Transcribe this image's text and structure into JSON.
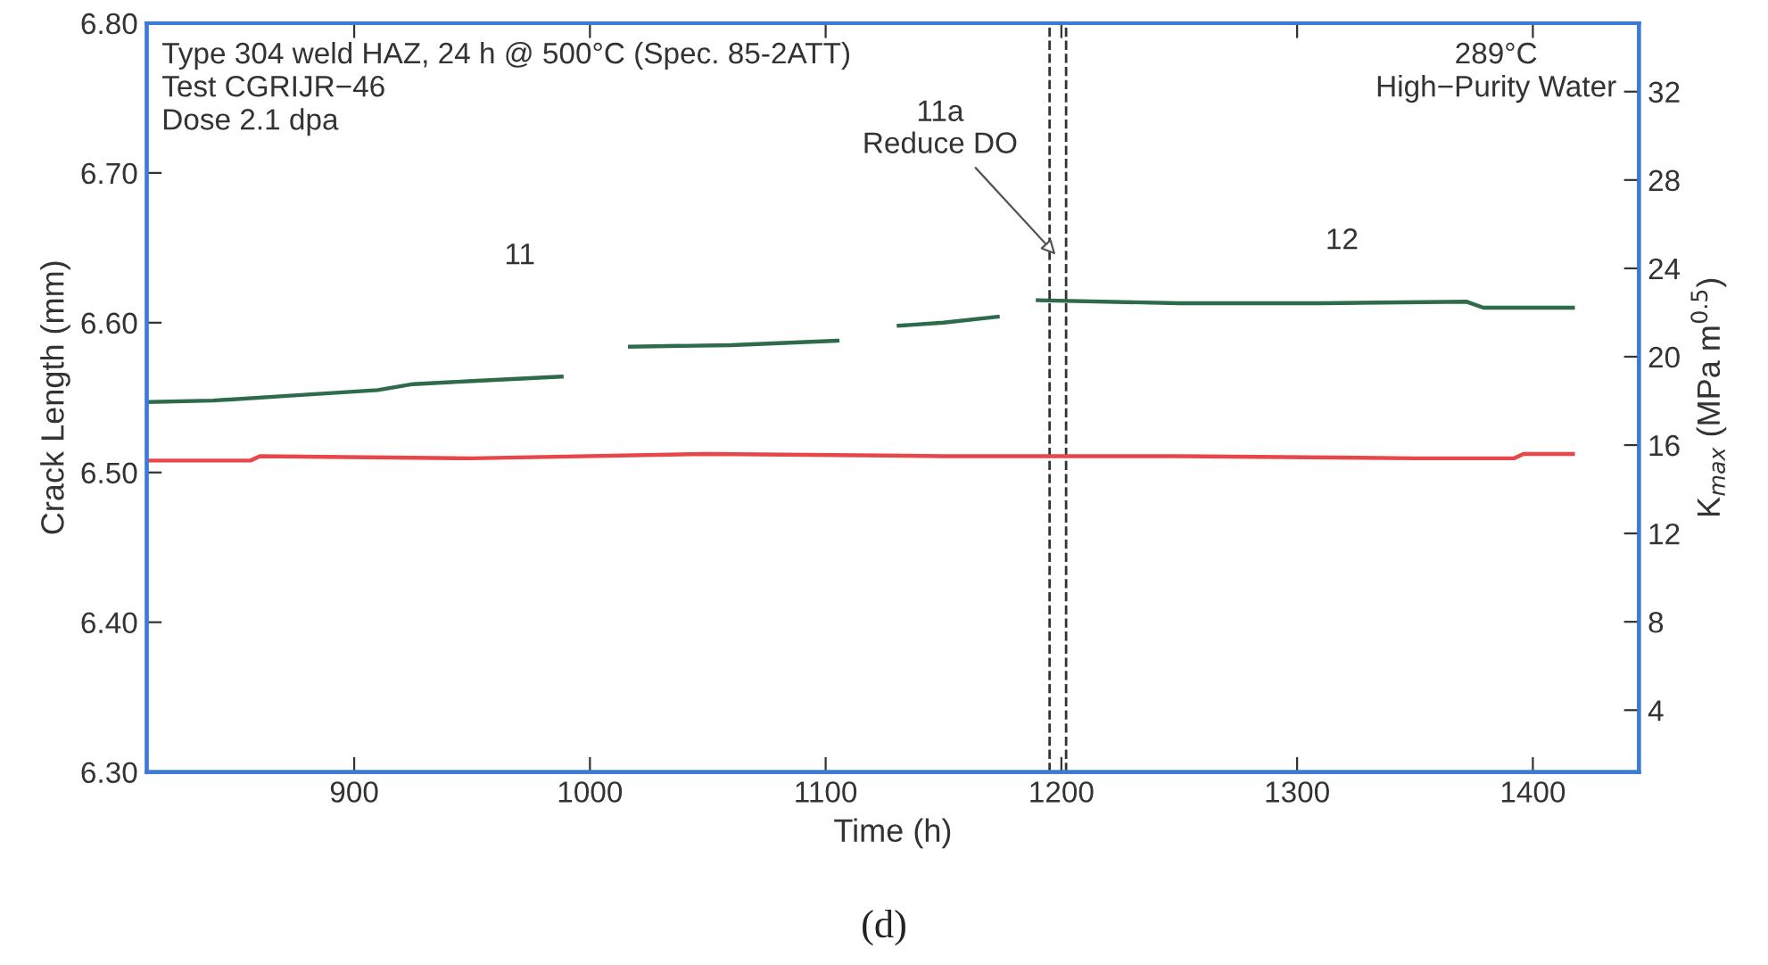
{
  "chart_data": {
    "type": "line",
    "xlabel": "Time (h)",
    "ylabel": "Crack Length (mm)",
    "y2label": "K$_{max}$ (MPa m$^{0.5}$)",
    "xlim": [
      812,
      1445
    ],
    "xticks": [
      900,
      1000,
      1100,
      1200,
      1300,
      1400
    ],
    "ylim": [
      6.3,
      6.8
    ],
    "yticks": [
      {
        "value": 6.3,
        "label": "6.30"
      },
      {
        "value": 6.4,
        "label": "6.40"
      },
      {
        "value": 6.5,
        "label": "6.50"
      },
      {
        "value": 6.6,
        "label": "6.60"
      },
      {
        "value": 6.7,
        "label": "6.70"
      },
      {
        "value": 6.8,
        "label": "6.80"
      }
    ],
    "y2lim": [
      1.2,
      35.1
    ],
    "y2ticks": [
      4,
      8,
      12,
      16,
      20,
      24,
      28,
      32
    ],
    "grid": false,
    "legend": false,
    "marker": "none",
    "line_style": "solid",
    "series": [
      {
        "color": "#2e6b4a",
        "axis": "y",
        "x": [
          813,
          840,
          870,
          910,
          925,
          950,
          988,
          1000,
          1017,
          1060,
          1105,
          1115,
          1131,
          1150,
          1173,
          1182,
          1190,
          1250,
          1310,
          1372,
          1379,
          1417
        ],
        "values": [
          6.547,
          6.548,
          6.551,
          6.555,
          6.559,
          6.561,
          6.564,
          null,
          6.584,
          6.585,
          6.588,
          null,
          6.598,
          6.6,
          6.604,
          null,
          6.615,
          6.613,
          6.613,
          6.614,
          6.61,
          6.61
        ]
      },
      {
        "color": "#e8474a",
        "axis": "y2",
        "x": [
          813,
          856,
          860,
          950,
          1050,
          1150,
          1250,
          1350,
          1392,
          1396,
          1417
        ],
        "values": [
          15.3,
          15.3,
          15.5,
          15.4,
          15.6,
          15.5,
          15.5,
          15.4,
          15.4,
          15.6,
          15.6
        ]
      }
    ],
    "ref_lines": [
      {
        "axis": "x",
        "value": 1195,
        "color": "#333333",
        "line_style": "dashed"
      },
      {
        "axis": "x",
        "value": 1202,
        "color": "#333333",
        "line_style": "dashed"
      }
    ],
    "annotations": [
      "Type 304 weld HAZ, 24 h @ 500°C (Spec. 85-2ATT)\nTest CGRIJR−46\nDose 2.1 dpa",
      "289°C\nHigh−Purity Water",
      "11",
      {
        "text": "11a\nReduce DO",
        "x": 1199,
        "y": 6.643
      },
      "12",
      "(d)"
    ]
  }
}
